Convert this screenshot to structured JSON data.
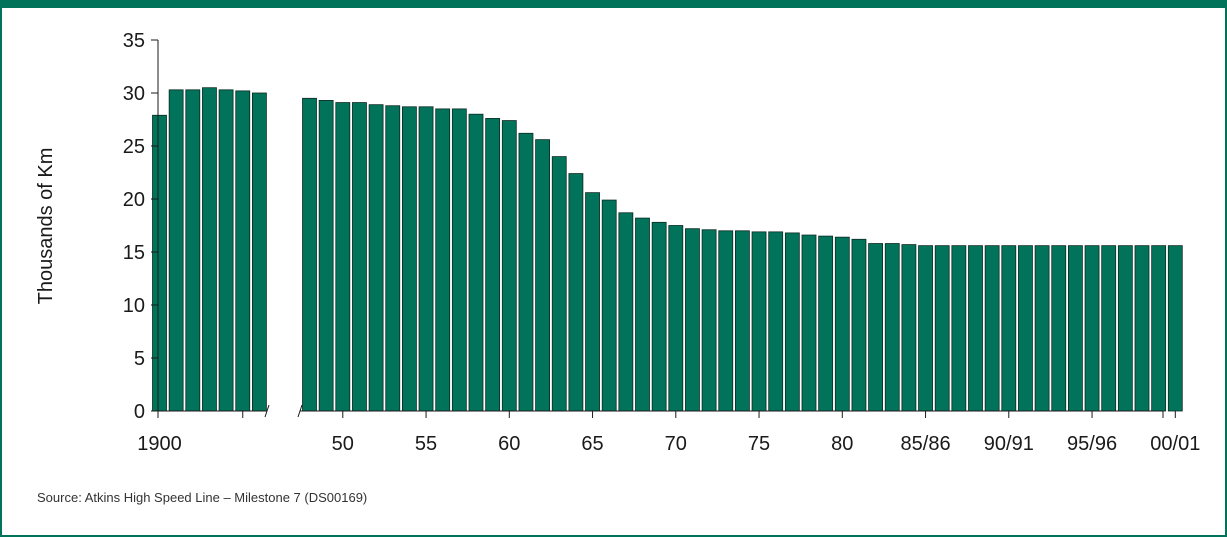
{
  "colors": {
    "bar": "#00735a",
    "bar_stroke": "#0d2a22",
    "frame": "#00735a",
    "axis": "#1a1a1a"
  },
  "source": "Source: Atkins High Speed Line – Milestone 7 (DS00169)",
  "chart_data": {
    "type": "bar",
    "title": "",
    "xlabel": "",
    "ylabel": "Thousands of Km",
    "ylim": [
      0,
      35
    ],
    "yticks": [
      "0",
      "5",
      "10",
      "15",
      "20",
      "25",
      "30",
      "35"
    ],
    "grid": false,
    "axis_break": "between early-1900s group and 1948",
    "xtick_labels": [
      {
        "label": "1900",
        "bar": 0
      },
      {
        "label": "50",
        "bar": 9
      },
      {
        "label": "55",
        "bar": 14
      },
      {
        "label": "60",
        "bar": 19
      },
      {
        "label": "65",
        "bar": 24
      },
      {
        "label": "70",
        "bar": 29
      },
      {
        "label": "75",
        "bar": 34
      },
      {
        "label": "80",
        "bar": 39
      },
      {
        "label": "85/86",
        "bar": 44
      },
      {
        "label": "90/91",
        "bar": 49
      },
      {
        "label": "95/96",
        "bar": 54
      },
      {
        "label": "00/01",
        "bar": 59
      }
    ],
    "groups": [
      {
        "values": [
          27.9,
          30.3,
          30.3,
          30.5,
          30.3,
          30.2,
          30.0
        ]
      },
      {
        "values": [
          29.5,
          29.3,
          29.1,
          29.1,
          28.9,
          28.8,
          28.7,
          28.7,
          28.5,
          28.5,
          28.0,
          27.6,
          27.4,
          26.2,
          25.6,
          24.0,
          22.4,
          20.6,
          19.9,
          18.7,
          18.2,
          17.8,
          17.5,
          17.2,
          17.1,
          17.0,
          17.0,
          16.9,
          16.9,
          16.8,
          16.6,
          16.5,
          16.4,
          16.2,
          15.8,
          15.8,
          15.7,
          15.6,
          15.6,
          15.6,
          15.6,
          15.6,
          15.6,
          15.6,
          15.6,
          15.6,
          15.6,
          15.6,
          15.6,
          15.6,
          15.6,
          15.6,
          15.6
        ]
      }
    ]
  }
}
